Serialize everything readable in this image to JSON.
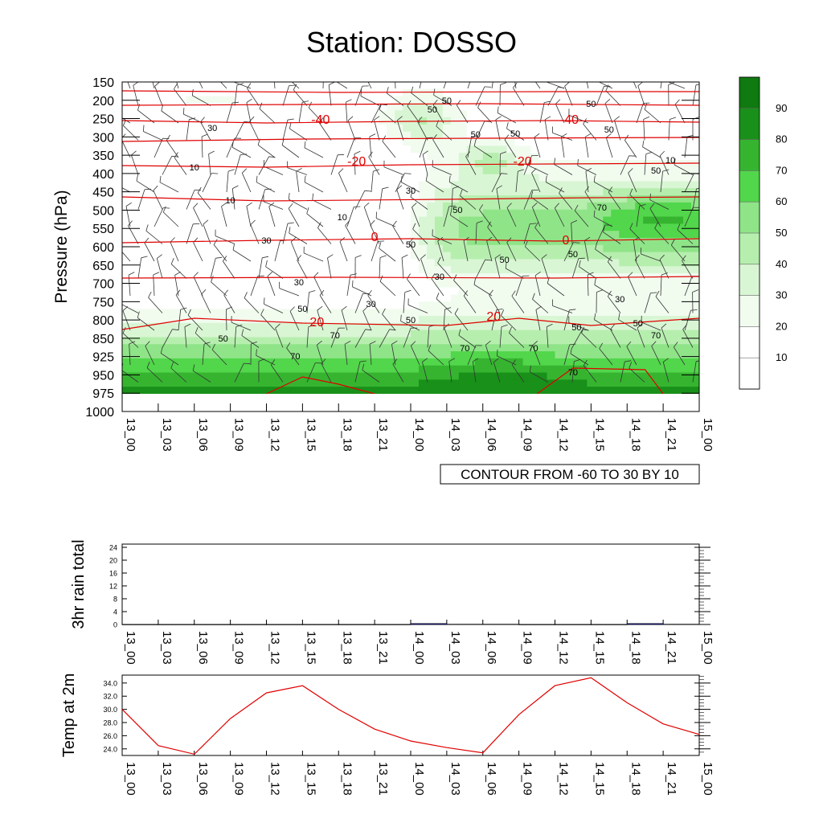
{
  "title": "Station: DOSSO",
  "contour_note": "CONTOUR FROM -60 TO 30 BY 10",
  "time_labels": [
    "13_00",
    "13_03",
    "13_06",
    "13_09",
    "13_12",
    "13_15",
    "13_18",
    "13_21",
    "14_00",
    "14_03",
    "14_06",
    "14_09",
    "14_12",
    "14_15",
    "14_18",
    "14_21",
    "15_00"
  ],
  "chart_data": [
    {
      "type": "heatmap",
      "title": "Station: DOSSO",
      "ylabel": "Pressure (hPa)",
      "y_ticks": [
        150,
        200,
        250,
        300,
        350,
        400,
        450,
        500,
        550,
        600,
        650,
        700,
        750,
        800,
        850,
        925,
        950,
        975,
        1000
      ],
      "x_ticks": [
        "13_00",
        "13_03",
        "13_06",
        "13_09",
        "13_12",
        "13_15",
        "13_18",
        "13_21",
        "14_00",
        "14_03",
        "14_06",
        "14_09",
        "14_12",
        "14_15",
        "14_18",
        "14_21",
        "15_00"
      ],
      "colorbar": {
        "levels": [
          10,
          20,
          30,
          40,
          50,
          60,
          70,
          80,
          90
        ],
        "colors": [
          "#ffffff",
          "#ffffff",
          "#f1fcef",
          "#d9f6d4",
          "#b6eeae",
          "#8fe488",
          "#52d64b",
          "#36b430",
          "#199019",
          "#0f7a0f"
        ]
      },
      "humidity_levels": [
        10,
        30,
        50,
        70
      ],
      "temperature_contours": [
        -40,
        -20,
        0,
        20
      ],
      "annotation": "CONTOUR FROM -60 TO 30 BY 10"
    },
    {
      "type": "bar",
      "ylabel": "3hr rain total",
      "ylim": [
        0,
        24
      ],
      "y_ticks": [
        0,
        4,
        8,
        12,
        16,
        20,
        24
      ],
      "categories": [
        "13_00",
        "13_03",
        "13_06",
        "13_09",
        "13_12",
        "13_15",
        "13_18",
        "13_21",
        "14_00",
        "14_03",
        "14_06",
        "14_09",
        "14_12",
        "14_15",
        "14_18",
        "14_21",
        "15_00"
      ],
      "values": [
        0,
        0,
        0,
        0,
        0,
        0,
        0,
        0,
        0.3,
        0.1,
        0.1,
        0,
        0,
        0,
        0.3,
        0.1,
        0.2
      ]
    },
    {
      "type": "line",
      "ylabel": "Temp at 2m",
      "ylim": [
        23,
        35.2
      ],
      "y_ticks": [
        "24.0",
        "26.0",
        "28.0",
        "30.0",
        "32.0",
        "34.0"
      ],
      "categories": [
        "13_00",
        "13_03",
        "13_06",
        "13_09",
        "13_12",
        "13_15",
        "13_18",
        "13_21",
        "14_00",
        "14_03",
        "14_06",
        "14_09",
        "14_12",
        "14_15",
        "14_18",
        "14_21",
        "15_00"
      ],
      "values": [
        30.0,
        24.5,
        23.2,
        28.6,
        32.5,
        33.6,
        30.0,
        27.0,
        25.2,
        24.2,
        23.4,
        29.2,
        33.6,
        34.8,
        31.0,
        27.8,
        26.2
      ],
      "color": "#e00000"
    }
  ]
}
